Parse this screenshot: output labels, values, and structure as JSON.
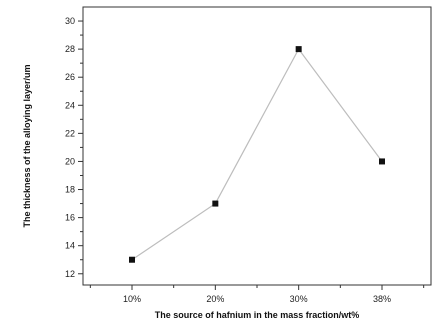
{
  "chart_data": {
    "type": "line",
    "title": "",
    "xlabel": "The source of hafnium in the mass fraction/wt%",
    "ylabel": "The thickness of the alloying layer/um",
    "categories": [
      "10%",
      "20%",
      "30%",
      "38%"
    ],
    "series": [
      {
        "values": [
          13,
          17,
          28,
          20
        ],
        "marker": "square",
        "color": "#111111",
        "line_color": "#bdbdbd"
      }
    ],
    "ylim": [
      11.2,
      31
    ],
    "y_ticks": [
      12,
      14,
      16,
      18,
      20,
      22,
      24,
      26,
      28,
      30
    ],
    "grid": false,
    "legend": "none"
  }
}
